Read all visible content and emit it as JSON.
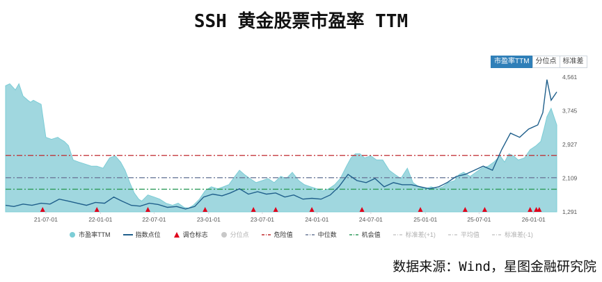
{
  "title": "SSH 黄金股票市盈率 TTM",
  "tabs": [
    "市盈率TTM",
    "分位点",
    "标准差"
  ],
  "legend": [
    {
      "label": "市盈率TTM",
      "icon": "circle",
      "color": "#7ccdd6",
      "muted": false
    },
    {
      "label": "指数点位",
      "icon": "line",
      "color": "#1f5f8b",
      "muted": false
    },
    {
      "label": "调仓标志",
      "icon": "triangle",
      "color": "#e0001b",
      "muted": false
    },
    {
      "label": "分位点",
      "icon": "circle",
      "color": "#c8c8c8",
      "muted": true
    },
    {
      "label": "危险值",
      "icon": "dash",
      "color": "#c0282d",
      "muted": false
    },
    {
      "label": "中位数",
      "icon": "dash",
      "color": "#6b7a99",
      "muted": false
    },
    {
      "label": "机会值",
      "icon": "dash",
      "color": "#2e9a5a",
      "muted": false
    },
    {
      "label": "标准差(+1)",
      "icon": "dash",
      "color": "#c8c8c8",
      "muted": true
    },
    {
      "label": "平均值",
      "icon": "dash",
      "color": "#c8c8c8",
      "muted": true
    },
    {
      "label": "标准差(-1)",
      "icon": "dash",
      "color": "#c8c8c8",
      "muted": true
    }
  ],
  "source": "数据来源：Wind，星图金融研究院",
  "chart_data": {
    "type": "area",
    "x_range": [
      "2021-02-15",
      "2026-03-20"
    ],
    "x_ticks": [
      "21-07-01",
      "22-01-01",
      "22-07-01",
      "23-01-01",
      "23-07-01",
      "24-01-01",
      "24-07-01",
      "25-01-01",
      "25-07-01",
      "26-01-01"
    ],
    "y_ticks": [
      "1,291",
      "2,109",
      "2,927",
      "3,745",
      "4,561"
    ],
    "y_range": [
      1291,
      4561
    ],
    "reference_lines": {
      "danger": 2660,
      "median": 2120,
      "opportunity": 1840
    },
    "pe_ttm": {
      "name": "市盈率TTM",
      "x": [
        "2021-02-15",
        "2021-03-01",
        "2021-03-20",
        "2021-04-01",
        "2021-04-15",
        "2021-05-01",
        "2021-05-10",
        "2021-05-20",
        "2021-06-01",
        "2021-06-15",
        "2021-07-01",
        "2021-07-20",
        "2021-08-10",
        "2021-08-20",
        "2021-09-01",
        "2021-09-15",
        "2021-10-01",
        "2021-10-20",
        "2021-11-10",
        "2021-12-01",
        "2021-12-20",
        "2022-01-10",
        "2022-02-01",
        "2022-02-20",
        "2022-03-10",
        "2022-03-25",
        "2022-04-10",
        "2022-04-25",
        "2022-05-10",
        "2022-05-20",
        "2022-06-10",
        "2022-07-01",
        "2022-07-20",
        "2022-08-10",
        "2022-09-01",
        "2022-09-20",
        "2022-10-10",
        "2022-10-25",
        "2022-11-10",
        "2022-12-01",
        "2022-12-20",
        "2023-01-10",
        "2023-02-01",
        "2023-02-20",
        "2023-03-10",
        "2023-03-25",
        "2023-04-15",
        "2023-05-01",
        "2023-05-20",
        "2023-06-10",
        "2023-07-01",
        "2023-07-20",
        "2023-08-10",
        "2023-09-01",
        "2023-09-20",
        "2023-10-10",
        "2023-11-01",
        "2023-11-20",
        "2023-12-10",
        "2024-01-01",
        "2024-01-20",
        "2024-02-10",
        "2024-03-01",
        "2024-03-20",
        "2024-04-10",
        "2024-04-25",
        "2024-05-10",
        "2024-05-25",
        "2024-06-10",
        "2024-07-01",
        "2024-07-20",
        "2024-08-10",
        "2024-09-01",
        "2024-09-20",
        "2024-10-10",
        "2024-11-01",
        "2024-11-20",
        "2024-12-10",
        "2025-01-01",
        "2025-01-20",
        "2025-02-10",
        "2025-03-01",
        "2025-03-20",
        "2025-04-10",
        "2025-04-25",
        "2025-05-10",
        "2025-06-01",
        "2025-06-20",
        "2025-07-10",
        "2025-08-01",
        "2025-08-20",
        "2025-09-10",
        "2025-09-25",
        "2025-10-10",
        "2025-10-25",
        "2025-11-10",
        "2025-12-01",
        "2025-12-20",
        "2026-01-10",
        "2026-01-25",
        "2026-02-05",
        "2026-02-15",
        "2026-03-01",
        "2026-03-20"
      ],
      "values": [
        4350,
        4400,
        4250,
        4400,
        4100,
        4000,
        3950,
        4000,
        3950,
        3900,
        3100,
        3050,
        3100,
        3050,
        3000,
        2900,
        2550,
        2500,
        2450,
        2400,
        2400,
        2350,
        2600,
        2650,
        2500,
        2300,
        2000,
        1750,
        1600,
        1550,
        1700,
        1650,
        1600,
        1500,
        1450,
        1500,
        1400,
        1380,
        1450,
        1600,
        1800,
        1900,
        1850,
        1900,
        1950,
        2100,
        2300,
        2200,
        2100,
        2000,
        2050,
        2100,
        2000,
        2150,
        2100,
        2250,
        2050,
        1950,
        1900,
        1850,
        1800,
        1850,
        1950,
        2100,
        2400,
        2600,
        2700,
        2700,
        2600,
        2650,
        2550,
        2550,
        2300,
        2200,
        2100,
        2350,
        2000,
        1900,
        1850,
        1900,
        1850,
        1900,
        2000,
        2050,
        2200,
        2250,
        2150,
        2250,
        2350,
        2400,
        2500,
        2650,
        2500,
        2700,
        2650,
        2550,
        2600,
        2800,
        2900,
        3000,
        3300,
        3600,
        3800,
        3400
      ]
    },
    "index_level": {
      "name": "指数点位",
      "x": [
        "2021-02-15",
        "2021-03-15",
        "2021-04-15",
        "2021-05-15",
        "2021-06-15",
        "2021-07-15",
        "2021-08-15",
        "2021-09-15",
        "2021-10-15",
        "2021-11-15",
        "2021-12-15",
        "2022-01-15",
        "2022-02-15",
        "2022-03-15",
        "2022-04-15",
        "2022-05-15",
        "2022-06-15",
        "2022-07-15",
        "2022-08-15",
        "2022-09-15",
        "2022-10-15",
        "2022-11-15",
        "2022-12-15",
        "2023-01-15",
        "2023-02-15",
        "2023-03-15",
        "2023-04-15",
        "2023-05-15",
        "2023-06-15",
        "2023-07-15",
        "2023-08-15",
        "2023-09-15",
        "2023-10-15",
        "2023-11-15",
        "2023-12-15",
        "2024-01-15",
        "2024-02-15",
        "2024-03-15",
        "2024-04-15",
        "2024-05-15",
        "2024-06-15",
        "2024-07-15",
        "2024-08-15",
        "2024-09-15",
        "2024-10-15",
        "2024-11-15",
        "2024-12-15",
        "2025-01-15",
        "2025-02-15",
        "2025-03-15",
        "2025-04-15",
        "2025-05-15",
        "2025-06-15",
        "2025-07-15",
        "2025-08-15",
        "2025-09-15",
        "2025-10-15",
        "2025-11-15",
        "2025-12-15",
        "2026-01-15",
        "2026-02-01",
        "2026-02-15",
        "2026-03-01",
        "2026-03-20"
      ],
      "values": [
        1450,
        1420,
        1480,
        1450,
        1500,
        1480,
        1600,
        1550,
        1500,
        1450,
        1520,
        1500,
        1650,
        1550,
        1450,
        1430,
        1500,
        1470,
        1400,
        1420,
        1360,
        1420,
        1650,
        1720,
        1680,
        1750,
        1850,
        1720,
        1780,
        1720,
        1750,
        1650,
        1700,
        1600,
        1620,
        1600,
        1700,
        1900,
        2200,
        2050,
        2000,
        2100,
        1900,
        2000,
        1950,
        1950,
        1900,
        1850,
        1900,
        2000,
        2150,
        2200,
        2300,
        2400,
        2300,
        2800,
        3200,
        3100,
        3300,
        3400,
        3700,
        4500,
        4000,
        4200
      ]
    },
    "rebalance_markers": [
      "2021-06-20",
      "2021-12-20",
      "2022-06-10",
      "2022-12-20",
      "2023-06-01",
      "2023-08-15",
      "2023-12-15",
      "2024-06-01",
      "2024-12-15",
      "2025-05-15",
      "2025-07-20",
      "2025-12-20",
      "2026-01-10",
      "2026-01-20"
    ]
  }
}
